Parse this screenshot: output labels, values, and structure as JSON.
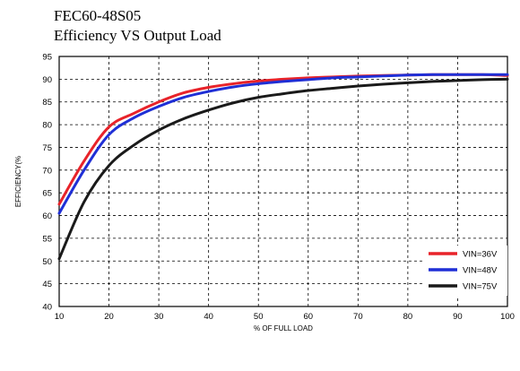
{
  "page": {
    "title": "FEC60-48S05",
    "subtitle": "Efficiency VS Output Load"
  },
  "chart_data": {
    "type": "line",
    "title": "FEC60-48S05",
    "subtitle": "Efficiency VS Output Load",
    "xlabel": "% OF FULL LOAD",
    "ylabel": "EFFICIENCY(%",
    "xlim": [
      10,
      100
    ],
    "ylim": [
      40,
      95
    ],
    "xticks": [
      10,
      20,
      30,
      40,
      50,
      60,
      70,
      80,
      90,
      100
    ],
    "yticks": [
      40,
      45,
      50,
      55,
      60,
      65,
      70,
      75,
      80,
      85,
      90,
      95
    ],
    "grid": true,
    "legend_position": "bottom-right",
    "series": [
      {
        "name": "VIN=36V",
        "color": "#e8232a",
        "x": [
          10,
          15,
          20,
          25,
          30,
          35,
          40,
          45,
          50,
          55,
          60,
          65,
          70,
          75,
          80,
          85,
          90,
          95,
          100
        ],
        "y": [
          62.5,
          72,
          79.5,
          82.5,
          85,
          87,
          88.2,
          89,
          89.6,
          90,
          90.3,
          90.5,
          90.7,
          90.8,
          90.9,
          91,
          91,
          91,
          90.8
        ]
      },
      {
        "name": "VIN=48V",
        "color": "#1f2fd6",
        "x": [
          10,
          15,
          20,
          25,
          30,
          35,
          40,
          45,
          50,
          55,
          60,
          65,
          70,
          75,
          80,
          85,
          90,
          95,
          100
        ],
        "y": [
          60.5,
          70,
          77.8,
          81.5,
          84,
          86,
          87.3,
          88.3,
          89,
          89.5,
          89.9,
          90.3,
          90.5,
          90.7,
          90.9,
          91,
          91,
          91,
          91
        ]
      },
      {
        "name": "VIN=75V",
        "color": "#1a1a1a",
        "x": [
          10,
          15,
          20,
          25,
          30,
          35,
          40,
          45,
          50,
          55,
          60,
          65,
          70,
          75,
          80,
          85,
          90,
          95,
          100
        ],
        "y": [
          50.5,
          63,
          71,
          75.5,
          78.8,
          81.3,
          83.2,
          84.8,
          86,
          86.8,
          87.5,
          88,
          88.5,
          88.9,
          89.2,
          89.5,
          89.7,
          89.9,
          90
        ]
      }
    ]
  }
}
